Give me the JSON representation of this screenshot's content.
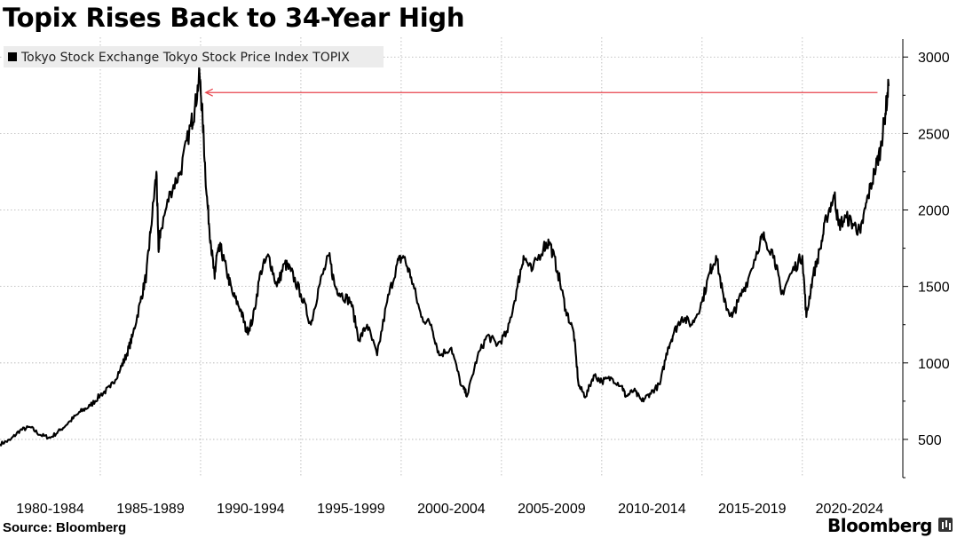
{
  "header": {
    "title": "Topix Rises Back to 34-Year High"
  },
  "footer": {
    "source": "Source: Bloomberg",
    "brand": "Bloomberg"
  },
  "colors": {
    "line": "#000000",
    "grid": "#b0b0b0",
    "annotation": "#e8434b",
    "legend_bg": "#ececec"
  },
  "chart_data": {
    "type": "line",
    "title": "Topix Rises Back to 34-Year High",
    "legend": [
      "Tokyo Stock Exchange Tokyo Stock Price Index TOPIX"
    ],
    "legend_position": "top-left",
    "x_tick_labels": [
      "1980-1984",
      "1985-1989",
      "1990-1994",
      "1995-1999",
      "2000-2004",
      "2005-2009",
      "2010-2014",
      "2015-2019",
      "2020-2024"
    ],
    "y_ticks": [
      500,
      1000,
      1500,
      2000,
      2500,
      3000
    ],
    "ylim": [
      250,
      3100
    ],
    "xlim": [
      1980.0,
      2024.7
    ],
    "grid": true,
    "y_axis_side": "right",
    "annotation": {
      "type": "horizontal-arrow",
      "from_year": 2024.1,
      "to_year": 1989.9,
      "y_value": 2884
    },
    "series": [
      {
        "name": "Tokyo Stock Exchange Tokyo Stock Price Index TOPIX",
        "x": [
          1980.0,
          1980.5,
          1981.0,
          1981.5,
          1982.0,
          1982.5,
          1983.0,
          1983.5,
          1984.0,
          1984.5,
          1985.0,
          1985.5,
          1986.0,
          1986.3,
          1986.6,
          1987.0,
          1987.3,
          1987.5,
          1987.8,
          1987.9,
          1988.0,
          1988.5,
          1989.0,
          1989.5,
          1989.7,
          1989.95,
          1990.1,
          1990.3,
          1990.5,
          1990.7,
          1990.8,
          1991.0,
          1991.3,
          1991.6,
          1992.0,
          1992.3,
          1992.6,
          1993.0,
          1993.4,
          1993.8,
          1994.2,
          1994.5,
          1995.0,
          1995.5,
          1995.9,
          1996.4,
          1996.7,
          1997.0,
          1997.5,
          1997.9,
          1998.3,
          1998.8,
          1999.3,
          1999.8,
          2000.1,
          2000.5,
          2001.0,
          2001.5,
          2001.9,
          2002.5,
          2003.0,
          2003.3,
          2003.8,
          2004.3,
          2004.8,
          2005.3,
          2005.8,
          2006.1,
          2006.5,
          2007.1,
          2007.4,
          2007.8,
          2008.2,
          2008.6,
          2008.85,
          2009.2,
          2009.6,
          2010.0,
          2010.5,
          2011.0,
          2011.2,
          2011.6,
          2012.0,
          2012.4,
          2012.9,
          2013.3,
          2013.6,
          2014.0,
          2014.5,
          2015.0,
          2015.4,
          2015.7,
          2016.1,
          2016.5,
          2016.8,
          2017.3,
          2017.9,
          2018.1,
          2018.6,
          2018.95,
          2019.5,
          2020.0,
          2020.2,
          2020.5,
          2020.9,
          2021.2,
          2021.6,
          2021.8,
          2022.2,
          2022.6,
          2022.9,
          2023.2,
          2023.6,
          2023.9,
          2024.1,
          2024.3
        ],
        "values": [
          470,
          495,
          560,
          580,
          530,
          510,
          560,
          620,
          680,
          720,
          790,
          840,
          960,
          1050,
          1170,
          1400,
          1580,
          1850,
          2250,
          1740,
          1860,
          2120,
          2250,
          2550,
          2650,
          2884,
          2600,
          2100,
          1800,
          1550,
          1700,
          1750,
          1600,
          1450,
          1350,
          1200,
          1280,
          1600,
          1700,
          1500,
          1650,
          1600,
          1450,
          1250,
          1500,
          1700,
          1500,
          1450,
          1400,
          1150,
          1250,
          1050,
          1400,
          1650,
          1700,
          1560,
          1300,
          1250,
          1050,
          1100,
          850,
          790,
          1040,
          1180,
          1120,
          1200,
          1500,
          1700,
          1600,
          1760,
          1790,
          1600,
          1350,
          1200,
          850,
          780,
          920,
          880,
          900,
          850,
          780,
          820,
          750,
          800,
          860,
          1100,
          1200,
          1300,
          1250,
          1400,
          1600,
          1700,
          1400,
          1300,
          1400,
          1550,
          1800,
          1820,
          1700,
          1450,
          1600,
          1700,
          1300,
          1550,
          1750,
          1950,
          2100,
          1900,
          1950,
          1900,
          1850,
          2050,
          2250,
          2400,
          2600,
          2810
        ]
      }
    ]
  }
}
